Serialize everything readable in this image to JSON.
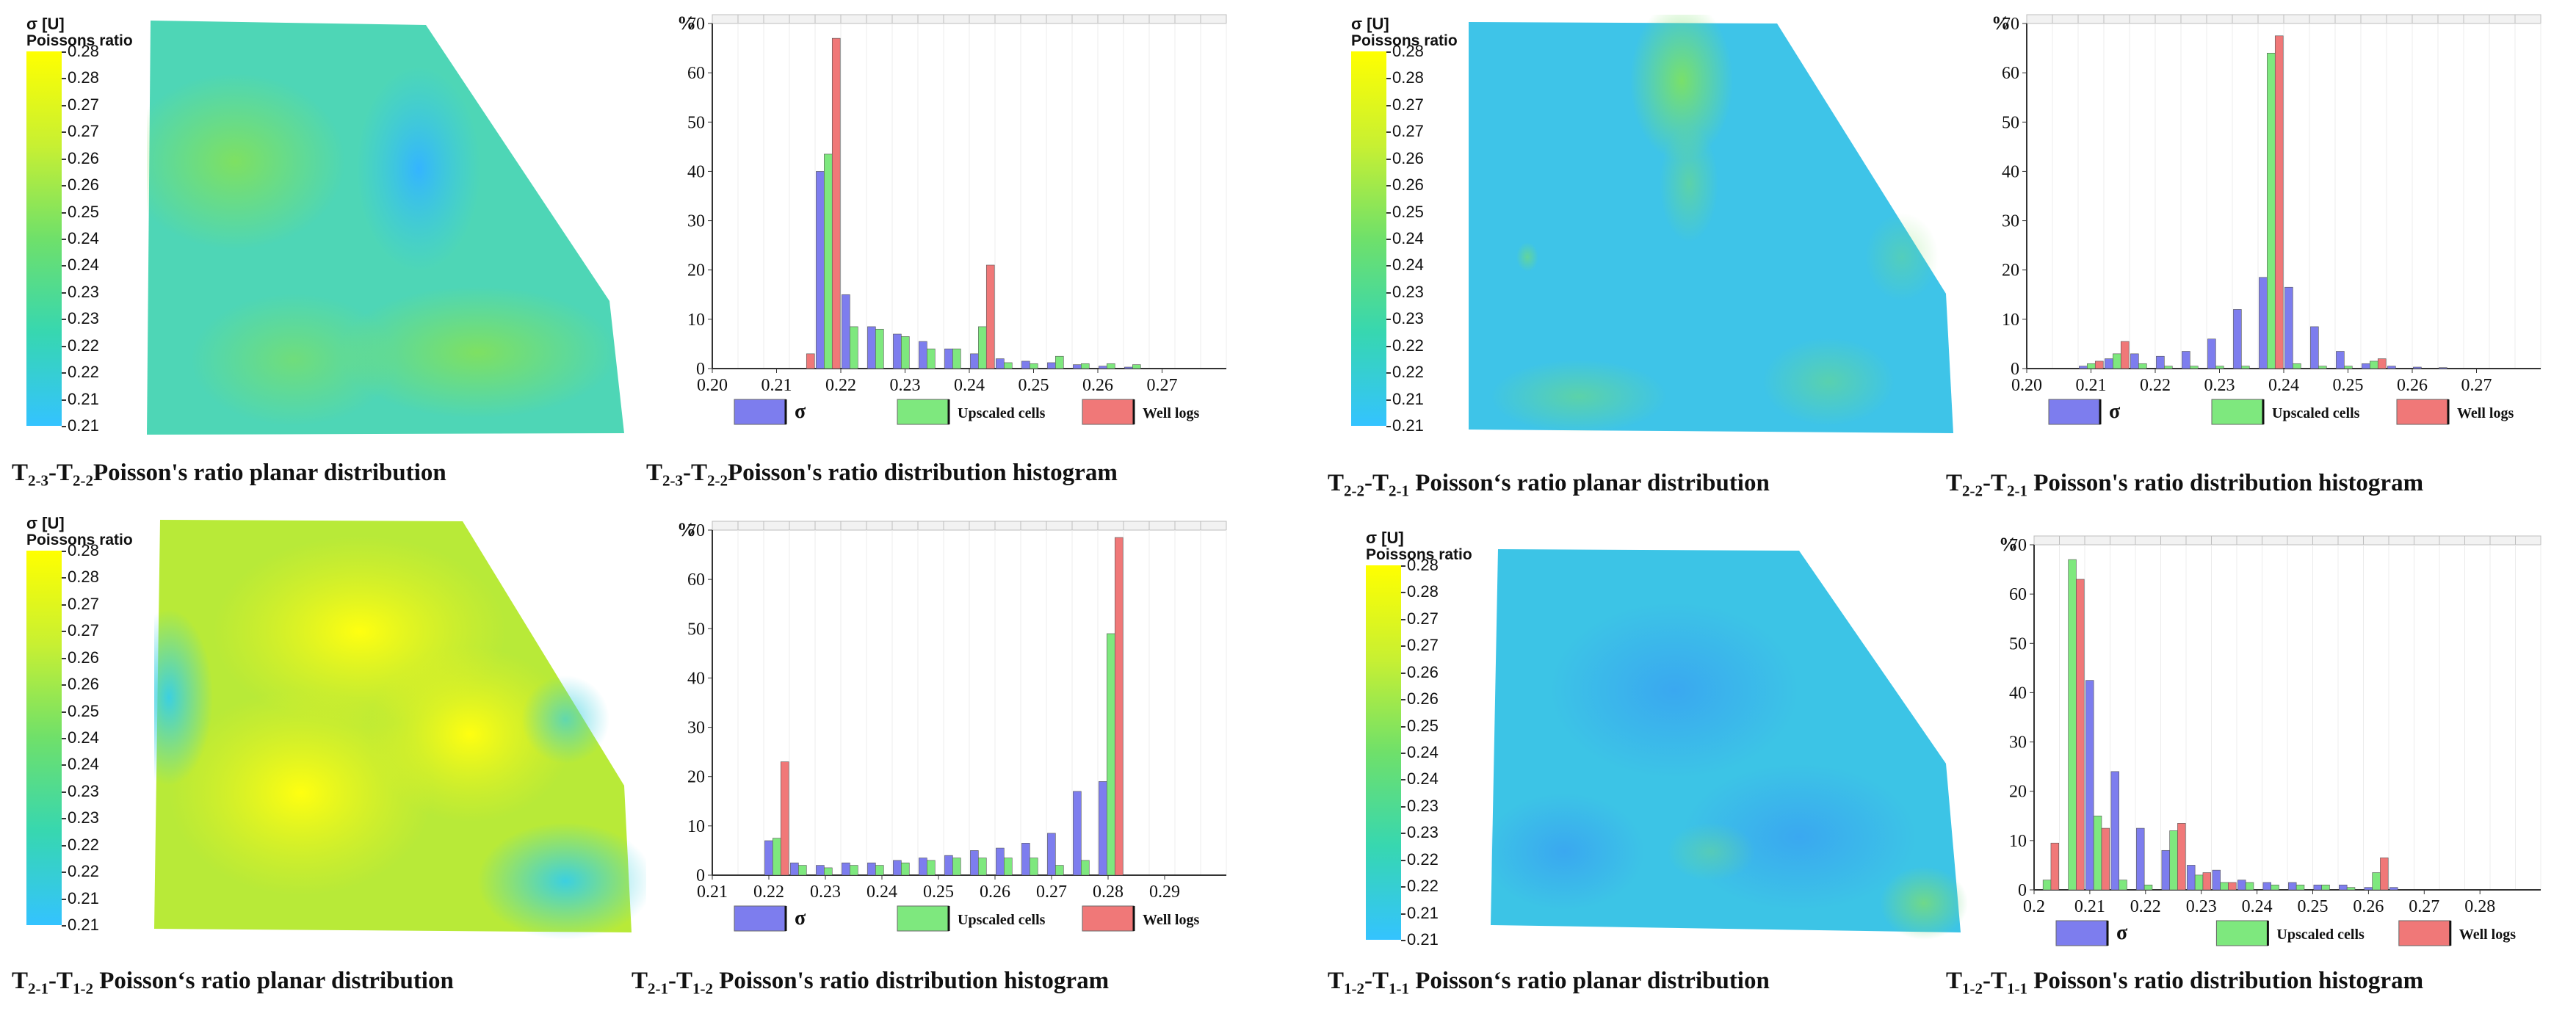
{
  "colors": {
    "sigma": "#7d7dee",
    "upscaled": "#7ee87e",
    "welllogs": "#f07878",
    "scale_top": "#ffff00",
    "scale_bottom": "#34c3ff"
  },
  "legend": {
    "unit": "σ [U]",
    "name": "Poissons ratio",
    "ticks": [
      "0.28",
      "0.28",
      "0.27",
      "0.27",
      "0.26",
      "0.26",
      "0.25",
      "0.24",
      "0.24",
      "0.23",
      "0.23",
      "0.22",
      "0.22",
      "0.21",
      "0.21"
    ]
  },
  "histogram_legend": {
    "sigma": "σ",
    "upscaled": "Upscaled cells",
    "welllogs": "Well logs"
  },
  "panels": [
    {
      "map_caption": {
        "pre": "T",
        "s1": "2-3",
        "mid": "-T",
        "s2": "2-2",
        "post": "Poisson's ratio  planar distribution"
      },
      "hist_caption": {
        "pre": "T",
        "s1": "2-3",
        "mid": "-T",
        "s2": "2-2",
        "post": "Poisson's ratio distribution histogram"
      }
    },
    {
      "map_caption": {
        "pre": "T",
        "s1": "2-2",
        "mid": "-T",
        "s2": "2-1",
        "post": " Poisson‘s ratio  planar distribution"
      },
      "hist_caption": {
        "pre": "T",
        "s1": "2-2",
        "mid": "-T",
        "s2": "2-1",
        "post": " Poisson's ratio distribution histogram"
      }
    },
    {
      "map_caption": {
        "pre": "T",
        "s1": "2-1",
        "mid": "-T",
        "s2": "1-2",
        "post": " Poisson‘s ratio  planar distribution"
      },
      "hist_caption": {
        "pre": "T",
        "s1": "2-1",
        "mid": "-T",
        "s2": "1-2",
        "post": " Poisson's ratio distribution histogram"
      }
    },
    {
      "map_caption": {
        "pre": "T",
        "s1": "1-2",
        "mid": "-T",
        "s2": "1-1",
        "post": " Poisson‘s ratio  planar distribution"
      },
      "hist_caption": {
        "pre": "T",
        "s1": "1-2",
        "mid": "-T",
        "s2": "1-1",
        "post": " Poisson's ratio distribution histogram"
      }
    }
  ],
  "chart_data": [
    {
      "type": "bar",
      "ylabel": "%",
      "ylim": [
        0,
        70
      ],
      "yticks": [
        0,
        10,
        20,
        30,
        40,
        50,
        60,
        70
      ],
      "xticks": [
        "0.20",
        "0.21",
        "0.22",
        "0.23",
        "0.24",
        "0.25",
        "0.26",
        "0.27"
      ],
      "xtick_bins": [
        0,
        2.5,
        5,
        7.5,
        10,
        12.5,
        15,
        17.5
      ],
      "series": [
        {
          "name": "σ",
          "values": [
            0,
            0,
            0,
            0,
            40,
            15,
            8.5,
            7,
            5.5,
            4,
            3,
            2,
            1.5,
            1.2,
            0.8,
            0.5,
            0.3,
            0,
            0,
            0
          ]
        },
        {
          "name": "Upscaled cells",
          "values": [
            0,
            0,
            0,
            0,
            43.5,
            8.5,
            8,
            6.5,
            4,
            4,
            8.5,
            1.2,
            1,
            2.5,
            1,
            1,
            0.8,
            0,
            0,
            0
          ]
        },
        {
          "name": "Well logs",
          "values": [
            0,
            0,
            0,
            3,
            67,
            0,
            0,
            0,
            0,
            0,
            21,
            0,
            0,
            0,
            0,
            0,
            0,
            0,
            0,
            0
          ]
        }
      ]
    },
    {
      "type": "bar",
      "ylabel": "%",
      "ylim": [
        0,
        70
      ],
      "yticks": [
        0,
        10,
        20,
        30,
        40,
        50,
        60,
        70
      ],
      "xticks": [
        "0.20",
        "0.21",
        "0.22",
        "0.23",
        "0.24",
        "0.25",
        "0.26",
        "0.27"
      ],
      "xtick_bins": [
        0,
        2.5,
        5,
        7.5,
        10,
        12.5,
        15,
        17.5
      ],
      "series": [
        {
          "name": "σ",
          "values": [
            0,
            0,
            0.5,
            2,
            3,
            2.5,
            3.5,
            6,
            12,
            18.5,
            16.5,
            8.5,
            3.5,
            1,
            0.5,
            0.3,
            0.2,
            0,
            0,
            0
          ]
        },
        {
          "name": "Upscaled cells",
          "values": [
            0,
            0,
            1,
            3,
            1,
            0.5,
            0.5,
            0.5,
            0.5,
            64,
            1,
            0.5,
            0.5,
            1.5,
            0,
            0,
            0,
            0,
            0,
            0
          ]
        },
        {
          "name": "Well logs",
          "values": [
            0,
            0,
            1.5,
            5.5,
            0,
            0,
            0,
            0,
            0,
            67.5,
            0,
            0,
            0,
            2,
            0,
            0,
            0,
            0,
            0,
            0
          ]
        }
      ]
    },
    {
      "type": "bar",
      "ylabel": "%",
      "ylim": [
        0,
        70
      ],
      "yticks": [
        0,
        10,
        20,
        30,
        40,
        50,
        60,
        70
      ],
      "xticks": [
        "0.21",
        "0.22",
        "0.23",
        "0.24",
        "0.25",
        "0.26",
        "0.27",
        "0.28",
        "0.29"
      ],
      "xtick_bins": [
        0,
        2.2,
        4.4,
        6.6,
        8.8,
        11,
        13.2,
        15.4,
        17.6
      ],
      "series": [
        {
          "name": "σ",
          "values": [
            0,
            0,
            7,
            2.5,
            2,
            2.5,
            2.5,
            3,
            3.5,
            4,
            5,
            5.5,
            6.5,
            8.5,
            17,
            19,
            0,
            0,
            0,
            0
          ]
        },
        {
          "name": "Upscaled cells",
          "values": [
            0,
            0,
            7.5,
            2,
            1.5,
            2,
            2,
            2.5,
            3,
            3.5,
            3.5,
            3.5,
            3.5,
            2,
            3,
            49,
            0,
            0,
            0,
            0
          ]
        },
        {
          "name": "Well logs",
          "values": [
            0,
            0,
            23,
            0,
            0,
            0,
            0,
            0,
            0,
            0,
            0,
            0,
            0,
            0,
            0,
            68.5,
            0,
            0,
            0,
            0
          ]
        }
      ]
    },
    {
      "type": "bar",
      "ylabel": "%",
      "ylim": [
        0,
        70
      ],
      "yticks": [
        0,
        10,
        20,
        30,
        40,
        50,
        60,
        70
      ],
      "xticks": [
        "0.2",
        "0.21",
        "0.22",
        "0.23",
        "0.24",
        "0.25",
        "0.26",
        "0.27",
        "0.28"
      ],
      "xtick_bins": [
        0,
        2.2,
        4.4,
        6.6,
        8.8,
        11,
        13.2,
        15.4,
        17.6
      ],
      "series": [
        {
          "name": "σ",
          "values": [
            0,
            0,
            42.5,
            24,
            12.5,
            8,
            5,
            4,
            2,
            1.5,
            1.5,
            1,
            1,
            0.5,
            0.5,
            0,
            0,
            0,
            0,
            0
          ]
        },
        {
          "name": "Upscaled cells",
          "values": [
            2,
            67,
            15,
            2,
            1,
            12,
            3,
            1.5,
            1.5,
            1,
            1,
            1,
            0.5,
            3.5,
            0,
            0,
            0,
            0,
            0,
            0
          ]
        },
        {
          "name": "Well logs",
          "values": [
            9.5,
            63,
            12.5,
            0,
            0,
            13.5,
            3.5,
            1.5,
            0,
            0,
            0,
            0,
            0,
            6.5,
            0,
            0,
            0,
            0,
            0,
            0
          ]
        }
      ]
    }
  ]
}
